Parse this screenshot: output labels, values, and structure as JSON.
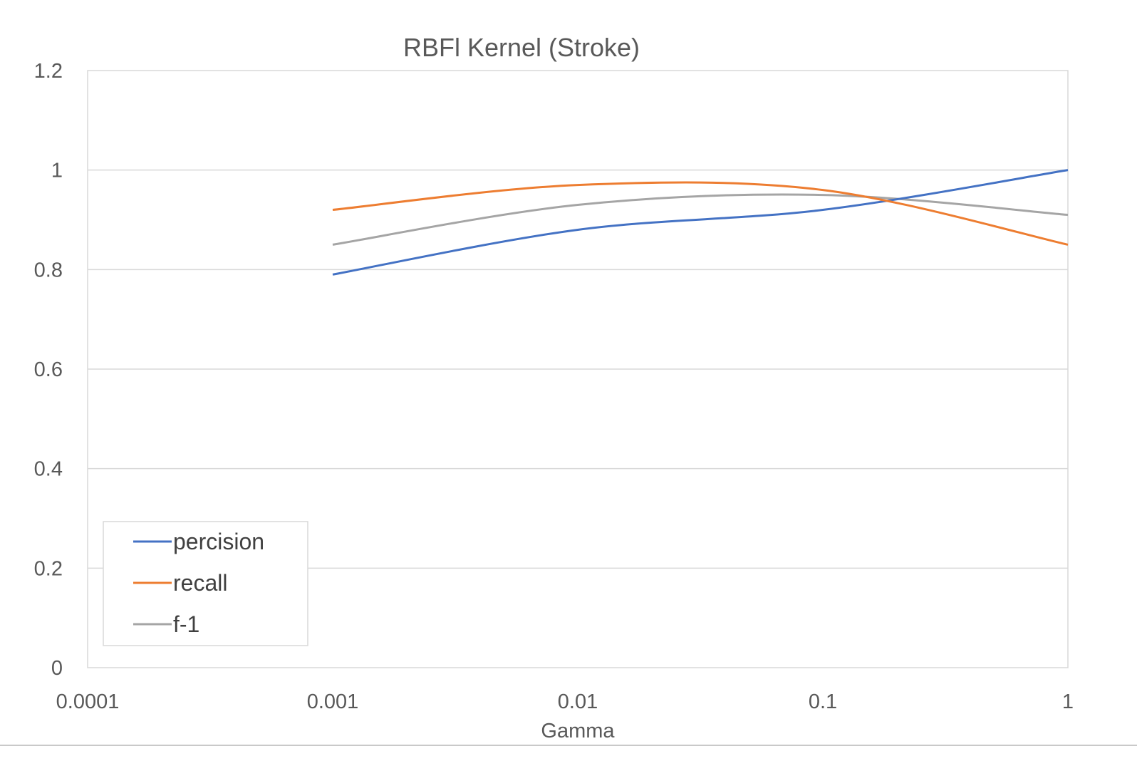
{
  "chart_data": {
    "type": "line",
    "title": "RBFl Kernel (Stroke)",
    "xlabel": "Gamma",
    "ylabel": "",
    "xscale": "log",
    "xlim": [
      0.0001,
      1
    ],
    "ylim": [
      0,
      1.2
    ],
    "x_ticks": [
      "0.0001",
      "0.001",
      "0.01",
      "0.1",
      "1"
    ],
    "y_ticks": [
      "0",
      "0.2",
      "0.4",
      "0.6",
      "0.8",
      "1",
      "1.2"
    ],
    "grid": "horizontal",
    "legend_position": "bottom-left",
    "x": [
      0.001,
      0.01,
      0.1,
      1
    ],
    "series": [
      {
        "name": "percision",
        "values": [
          0.79,
          0.88,
          0.92,
          1.0
        ],
        "color": "#4472c4"
      },
      {
        "name": "recall",
        "values": [
          0.92,
          0.97,
          0.96,
          0.85
        ],
        "color": "#ed7d31"
      },
      {
        "name": "f-1",
        "values": [
          0.85,
          0.93,
          0.95,
          0.91
        ],
        "color": "#a5a5a5"
      }
    ]
  }
}
